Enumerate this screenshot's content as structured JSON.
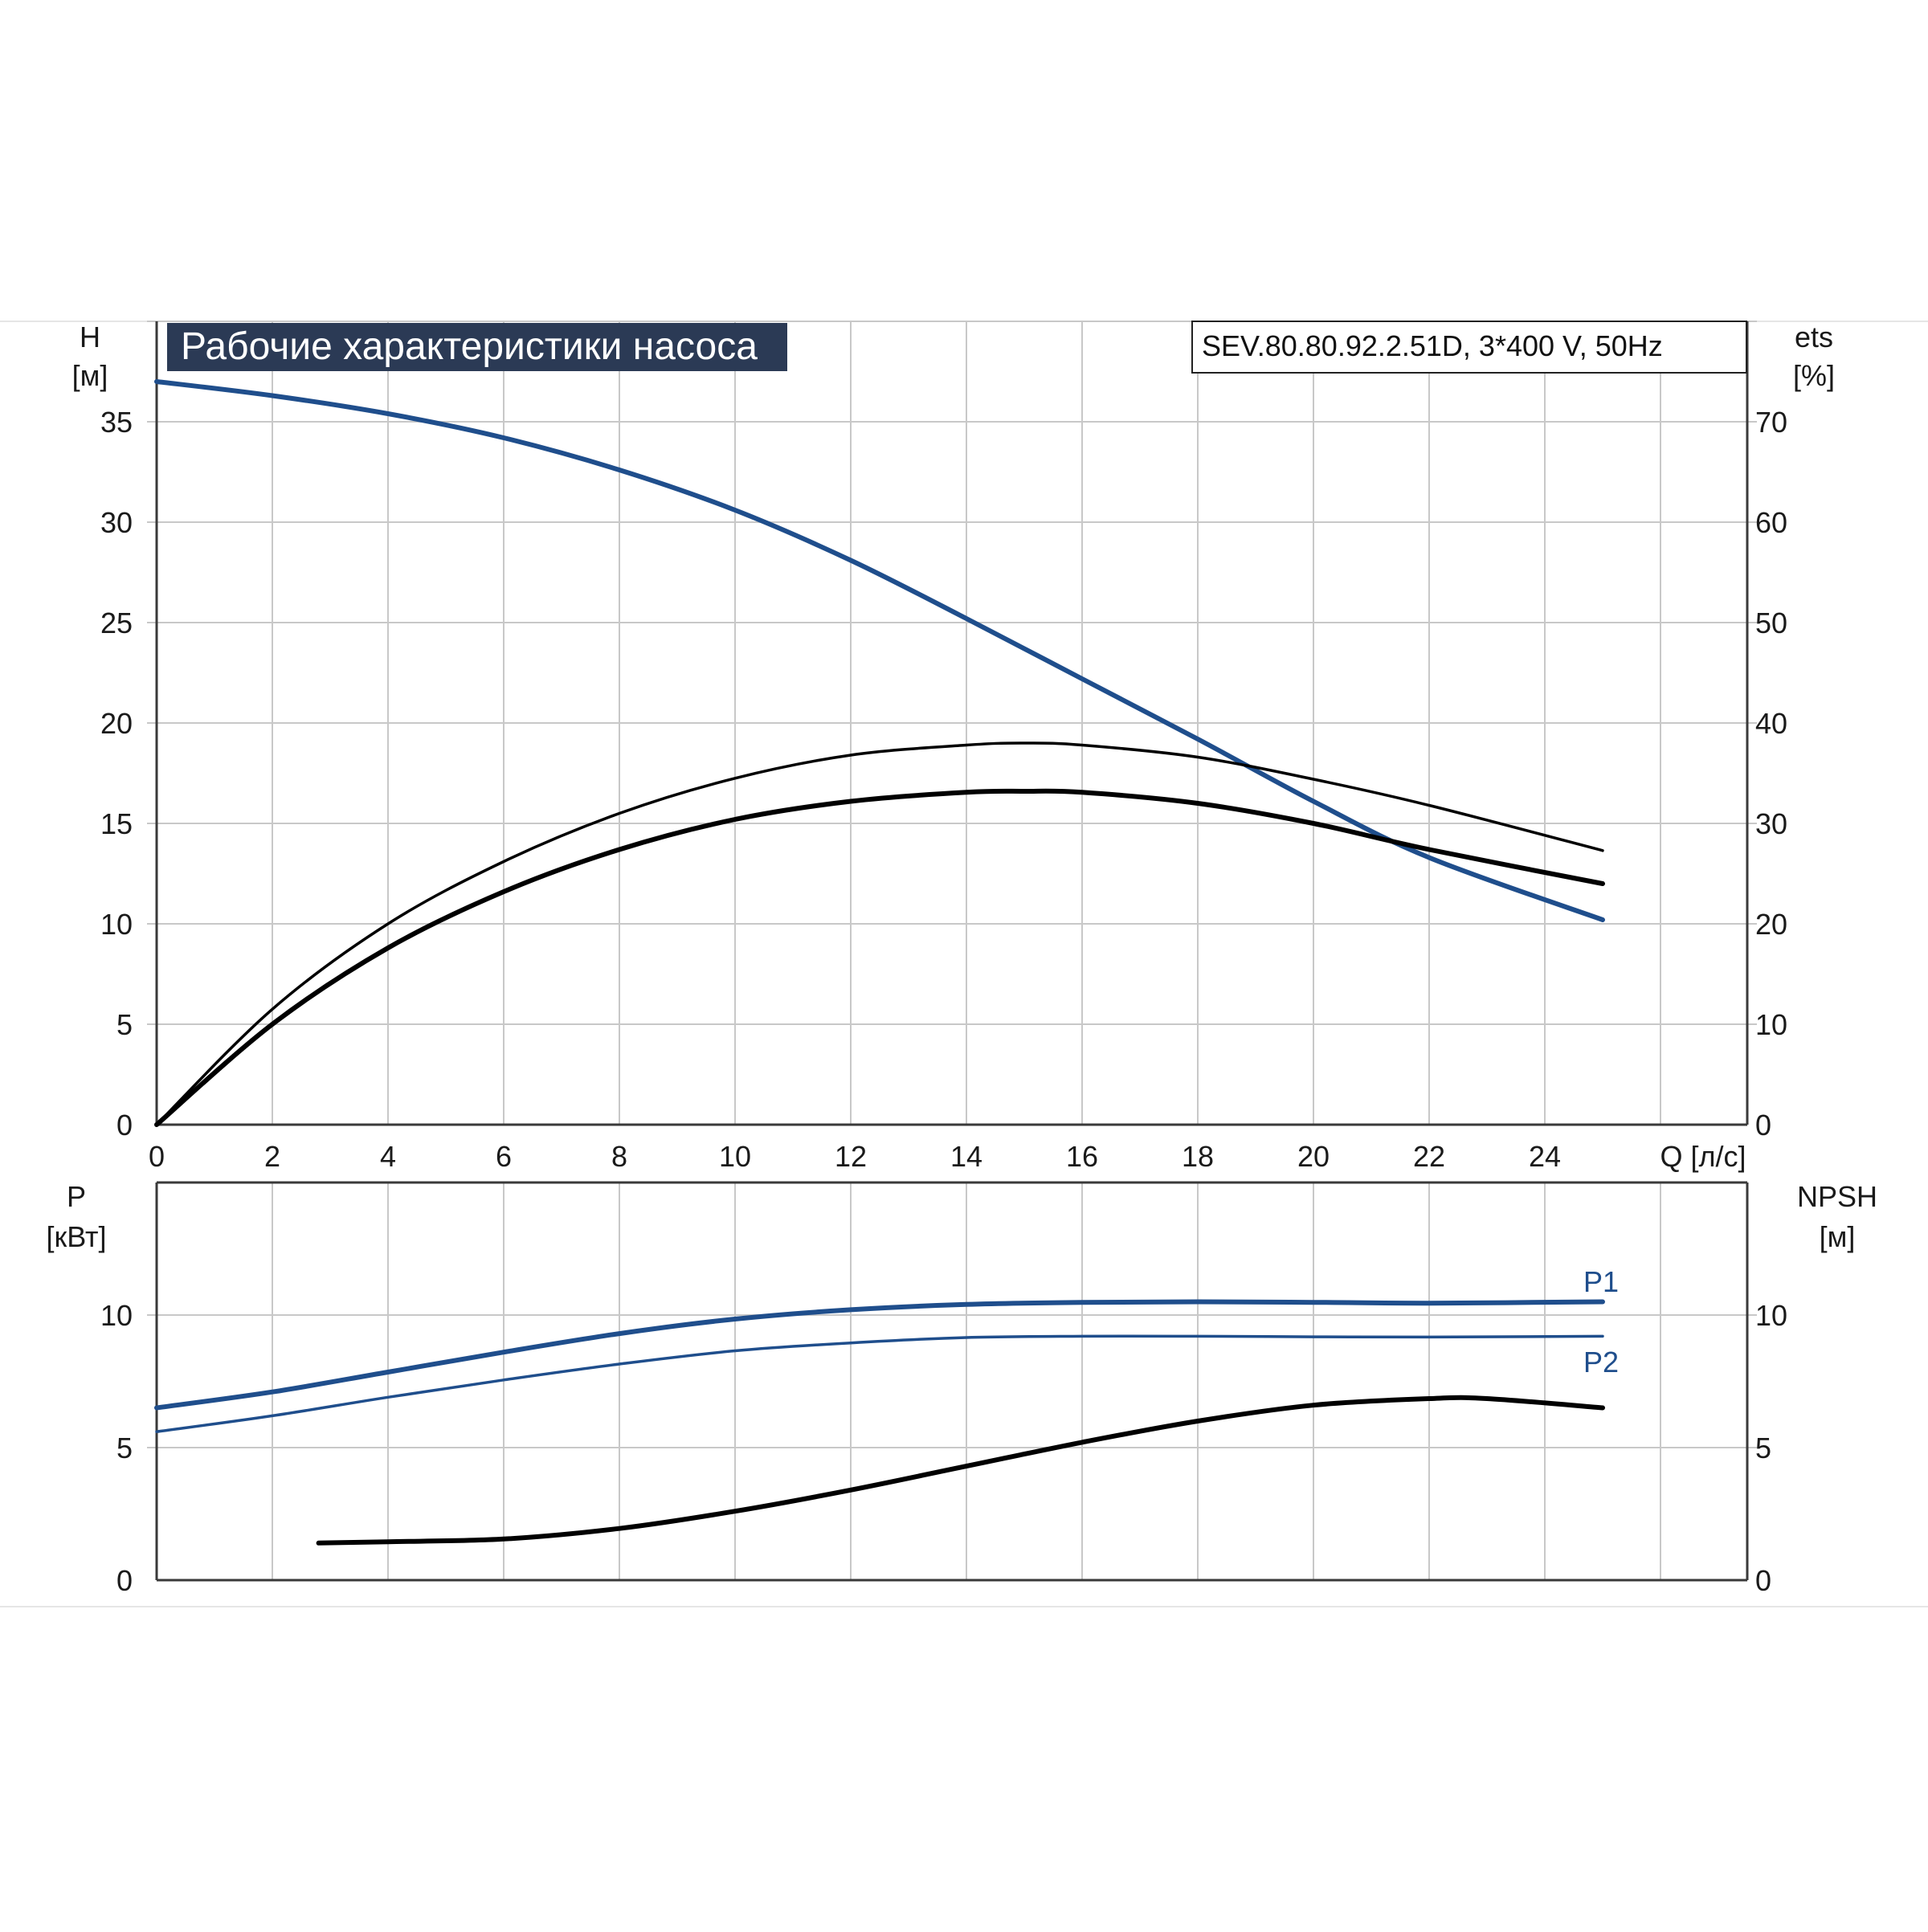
{
  "title": "Рабочие характеристики насоса",
  "subtitle": "SEV.80.80.92.2.51D, 3*400 V, 50Hz",
  "colors": {
    "blue": "#1f4e8c",
    "black": "#000000",
    "title_bg": "#2b3a55",
    "grid": "#c8c8c8"
  },
  "chart_data": [
    {
      "type": "line",
      "name": "head-efficiency",
      "xlabel": "Q [л/с]",
      "xlim": [
        0,
        27.5
      ],
      "xticks": [
        0,
        2,
        4,
        6,
        8,
        10,
        12,
        14,
        16,
        18,
        20,
        22,
        24
      ],
      "ylabel_left": [
        "H",
        "[м]"
      ],
      "ylim_left": [
        0,
        40
      ],
      "yticks_left": [
        0,
        5,
        10,
        15,
        20,
        25,
        30,
        35
      ],
      "ylabel_right": [
        "ets",
        "[%]"
      ],
      "ylim_right": [
        0,
        80
      ],
      "yticks_right": [
        0,
        10,
        20,
        30,
        40,
        50,
        60,
        70
      ],
      "grid": true,
      "series": [
        {
          "axis": "left",
          "color": "#1f4e8c",
          "weight": "thick",
          "x": [
            0,
            2,
            4,
            6,
            8,
            10,
            12,
            14,
            16,
            18,
            20,
            22,
            25
          ],
          "y": [
            37,
            36.3,
            35.4,
            34.2,
            32.6,
            30.6,
            28.1,
            25.2,
            22.2,
            19.2,
            16.1,
            13.3,
            10.2
          ]
        },
        {
          "axis": "right",
          "color": "#000000",
          "weight": "thin",
          "x": [
            0,
            2,
            4,
            6,
            8,
            10,
            12,
            14,
            15,
            16,
            18,
            20,
            22,
            25
          ],
          "y": [
            0,
            11.5,
            20,
            26.2,
            31,
            34.5,
            36.8,
            37.8,
            38,
            37.8,
            36.6,
            34.4,
            31.8,
            27.3
          ]
        },
        {
          "axis": "right",
          "color": "#000000",
          "weight": "thick",
          "x": [
            0,
            2,
            4,
            6,
            8,
            10,
            12,
            14,
            15,
            16,
            18,
            20,
            22,
            25
          ],
          "y": [
            0,
            10,
            17.6,
            23.2,
            27.4,
            30.4,
            32.2,
            33.1,
            33.2,
            33.1,
            32,
            30,
            27.4,
            24
          ]
        }
      ]
    },
    {
      "type": "line",
      "name": "power-npsh",
      "xlim": [
        0,
        27.5
      ],
      "ylabel_left": [
        "P",
        "[кВт]"
      ],
      "ylim_left": [
        0,
        15
      ],
      "yticks_left": [
        0,
        5,
        10
      ],
      "ylabel_right": [
        "NPSH",
        "[м]"
      ],
      "ylim_right": [
        0,
        15
      ],
      "yticks_right": [
        0,
        5,
        10
      ],
      "grid": true,
      "series": [
        {
          "name": "P1",
          "axis": "left",
          "color": "#1f4e8c",
          "weight": "thick",
          "x": [
            0,
            2,
            4,
            6,
            8,
            10,
            12,
            14,
            16,
            18,
            20,
            22,
            25
          ],
          "y": [
            6.5,
            7.1,
            7.85,
            8.6,
            9.3,
            9.85,
            10.2,
            10.4,
            10.48,
            10.5,
            10.48,
            10.45,
            10.5
          ]
        },
        {
          "name": "P2",
          "axis": "left",
          "color": "#1f4e8c",
          "weight": "thin",
          "x": [
            0,
            2,
            4,
            6,
            8,
            10,
            12,
            14,
            16,
            18,
            20,
            22,
            25
          ],
          "y": [
            5.6,
            6.2,
            6.9,
            7.55,
            8.15,
            8.65,
            8.95,
            9.15,
            9.2,
            9.2,
            9.18,
            9.17,
            9.2
          ]
        },
        {
          "axis": "right",
          "color": "#000000",
          "weight": "thick",
          "x": [
            2.8,
            4,
            6,
            8,
            10,
            12,
            14,
            16,
            18,
            20,
            22,
            23,
            25
          ],
          "y": [
            1.4,
            1.45,
            1.55,
            1.95,
            2.6,
            3.4,
            4.3,
            5.2,
            6,
            6.6,
            6.85,
            6.85,
            6.5
          ]
        }
      ]
    }
  ]
}
